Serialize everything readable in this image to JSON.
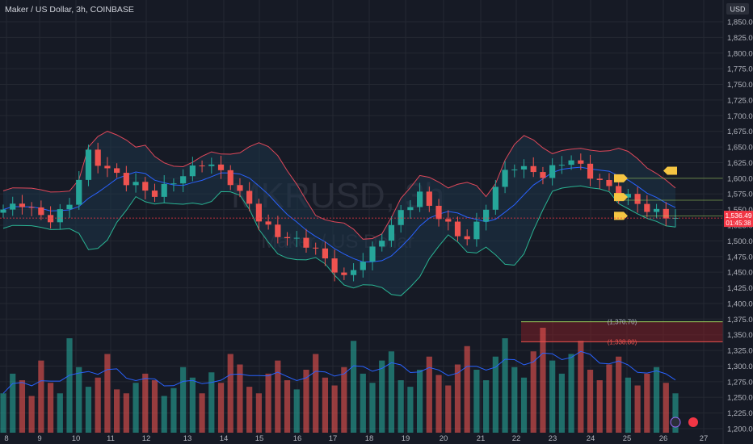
{
  "header": {
    "title": "Maker / US Dollar, 3h, COINBASE",
    "currency": "USD"
  },
  "watermark": {
    "symbol": "MKRUSD, 3h",
    "name": "Maker / US Dollar"
  },
  "colors": {
    "background": "#161a25",
    "grid": "#242832",
    "up": "#26a69a",
    "down": "#ef5350",
    "bb_upper": "#e0485a",
    "bb_lower": "#2ab594",
    "bb_basis": "#2962ff",
    "bb_fill": "#1d3448",
    "marker": "#f5c542",
    "support": "#a4d65e",
    "zone": "#7d1f27",
    "price_tag": "#f23645"
  },
  "price_tag": {
    "price": "1,536.49",
    "countdown": "01:45:38"
  },
  "zone": {
    "upper_label": "(1,370.70)",
    "lower_label": "(1,338.80)"
  },
  "chart_data": {
    "type": "candlestick",
    "title": "Maker / US Dollar, 3h, COINBASE",
    "ylim": [
      1195,
      1870
    ],
    "y_ticks": [
      "1,850.00",
      "1,825.00",
      "1,800.00",
      "1,775.00",
      "1,750.00",
      "1,725.00",
      "1,700.00",
      "1,675.00",
      "1,650.00",
      "1,625.00",
      "1,600.00",
      "1,575.00",
      "1,550.00",
      "1,525.00",
      "1,500.00",
      "1,475.00",
      "1,450.00",
      "1,425.00",
      "1,400.00",
      "1,375.00",
      "1,350.00",
      "1,325.00",
      "1,300.00",
      "1,275.00",
      "1,250.00",
      "1,225.00",
      "1,200.00"
    ],
    "x_ticks": [
      "8",
      "9",
      "10",
      "11",
      "12",
      "13",
      "14",
      "15",
      "16",
      "17",
      "18",
      "19",
      "20",
      "21",
      "22",
      "23",
      "24",
      "25",
      "26",
      "27"
    ],
    "last_price": 1536.49,
    "horizontal_levels": [
      1600,
      1565,
      1540
    ],
    "zone_levels": [
      1370.7,
      1338.8
    ],
    "trend_closes": [
      1550,
      1555,
      1560,
      1550,
      1540,
      1535,
      1545,
      1560,
      1600,
      1640,
      1625,
      1615,
      1605,
      1595,
      1590,
      1580,
      1575,
      1585,
      1595,
      1605,
      1615,
      1625,
      1620,
      1610,
      1595,
      1575,
      1560,
      1535,
      1520,
      1510,
      1505,
      1500,
      1495,
      1485,
      1470,
      1455,
      1440,
      1455,
      1470,
      1485,
      1505,
      1525,
      1545,
      1560,
      1575,
      1555,
      1540,
      1525,
      1510,
      1505,
      1525,
      1555,
      1585,
      1610,
      1620,
      1615,
      1610,
      1605,
      1615,
      1625,
      1630,
      1618,
      1605,
      1595,
      1585,
      1575,
      1570,
      1560,
      1550,
      1545,
      1540,
      1537
    ],
    "volume_profile": [
      30,
      45,
      40,
      28,
      55,
      38,
      30,
      72,
      50,
      35,
      42,
      60,
      33,
      30,
      38,
      45,
      40,
      28,
      34,
      50,
      42,
      30,
      46,
      38,
      60,
      52,
      35,
      30,
      45,
      55,
      40,
      33,
      48,
      60,
      42,
      36,
      50,
      70,
      45,
      38,
      55,
      62,
      40,
      35,
      48,
      58,
      44,
      36,
      52,
      66,
      48,
      40,
      58,
      72,
      50,
      42,
      62,
      80,
      55,
      45,
      60,
      70,
      48,
      40,
      52,
      58,
      42,
      36,
      45,
      50,
      38,
      30
    ]
  }
}
